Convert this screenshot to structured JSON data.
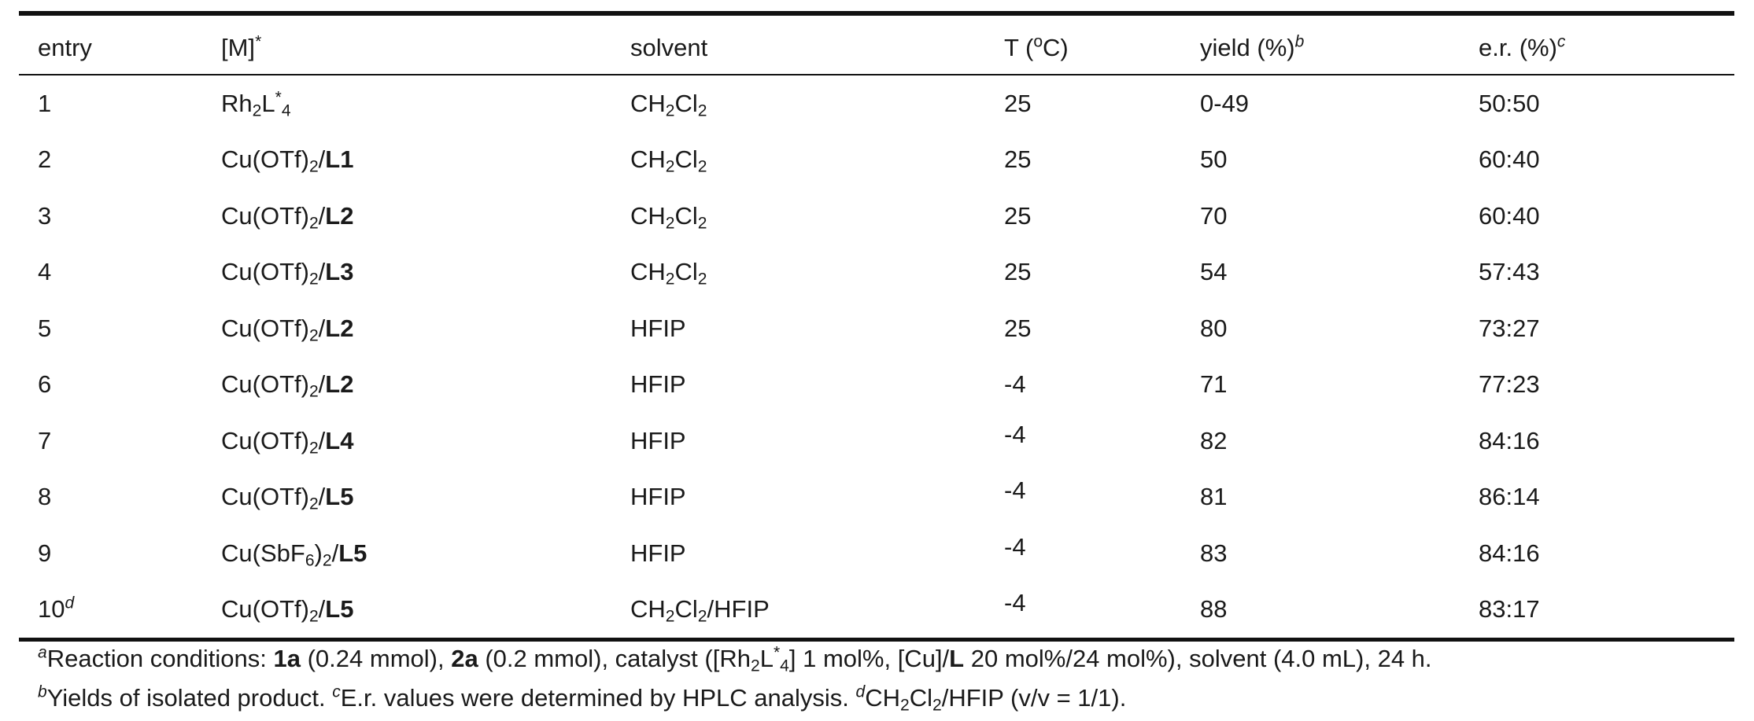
{
  "table": {
    "headers": {
      "entry": "entry",
      "metal": "[M]",
      "metal_sup": "*",
      "solvent": "solvent",
      "temp_pre": "T (",
      "temp_sup": "o",
      "temp_post": "C)",
      "yield": "yield (%)",
      "yield_sup": "b",
      "er": "e.r. (%)",
      "er_sup": "c"
    },
    "rows": [
      {
        "entry": "1",
        "temp": "25",
        "yield": "0-49",
        "er": "50:50"
      },
      {
        "entry": "2",
        "temp": "25",
        "yield": "50",
        "er": "60:40"
      },
      {
        "entry": "3",
        "temp": "25",
        "yield": "70",
        "er": "60:40"
      },
      {
        "entry": "4",
        "temp": "25",
        "yield": "54",
        "er": "57:43"
      },
      {
        "entry": "5",
        "temp": "25",
        "yield": "80",
        "er": "73:27"
      },
      {
        "entry": "6",
        "temp": "-4",
        "yield": "71",
        "er": "77:23"
      },
      {
        "entry": "7",
        "temp": "-4",
        "yield": "82",
        "er": "84:16"
      },
      {
        "entry": "8",
        "temp": "-4",
        "yield": "81",
        "er": "86:14"
      },
      {
        "entry": "9",
        "temp": "-4",
        "yield": "83",
        "er": "84:16"
      },
      {
        "entry": "10",
        "entry_sup": "d",
        "temp": "-4",
        "yield": "88",
        "er": "83:17"
      }
    ],
    "chem": {
      "rh": "Rh",
      "sub2": "2",
      "l": "L",
      "star": "*",
      "sub4": "4",
      "cu_otf": "Cu(OTf)",
      "cu_sbf": "Cu(SbF",
      "sub6": "6",
      "paren": ")",
      "slash": "/",
      "ligands": [
        "L1",
        "L2",
        "L3",
        "L2",
        "L2",
        "L4",
        "L5",
        "L5",
        "L5"
      ],
      "ch": "CH",
      "cl": "Cl",
      "hfip": "HFIP",
      "slash_hfip": "/HFIP"
    }
  },
  "footnotes": {
    "a": {
      "mark": "a",
      "t1": "Reaction conditions: ",
      "b1": "1a",
      "t2": " (0.24 mmol), ",
      "b2": "2a",
      "t3": " (0.2 mmol), catalyst ([Rh",
      "s1": "2",
      "t4": "L",
      "sp1": "*",
      "s2": "4",
      "t5": "] 1 mol%, [Cu]/",
      "b3": "L",
      "t6": " 20 mol%/24 mol%), solvent (4.0 mL), 24 h."
    },
    "b": {
      "mark": "b",
      "text": "Yields of isolated product. "
    },
    "c": {
      "mark": "c",
      "text": "E.r. values were determined by HPLC analysis. "
    },
    "d": {
      "mark": "d",
      "ch": "CH",
      "s1": "2",
      "cl": "Cl",
      "s2": "2",
      "text": "/HFIP (v/v = 1/1)."
    }
  }
}
